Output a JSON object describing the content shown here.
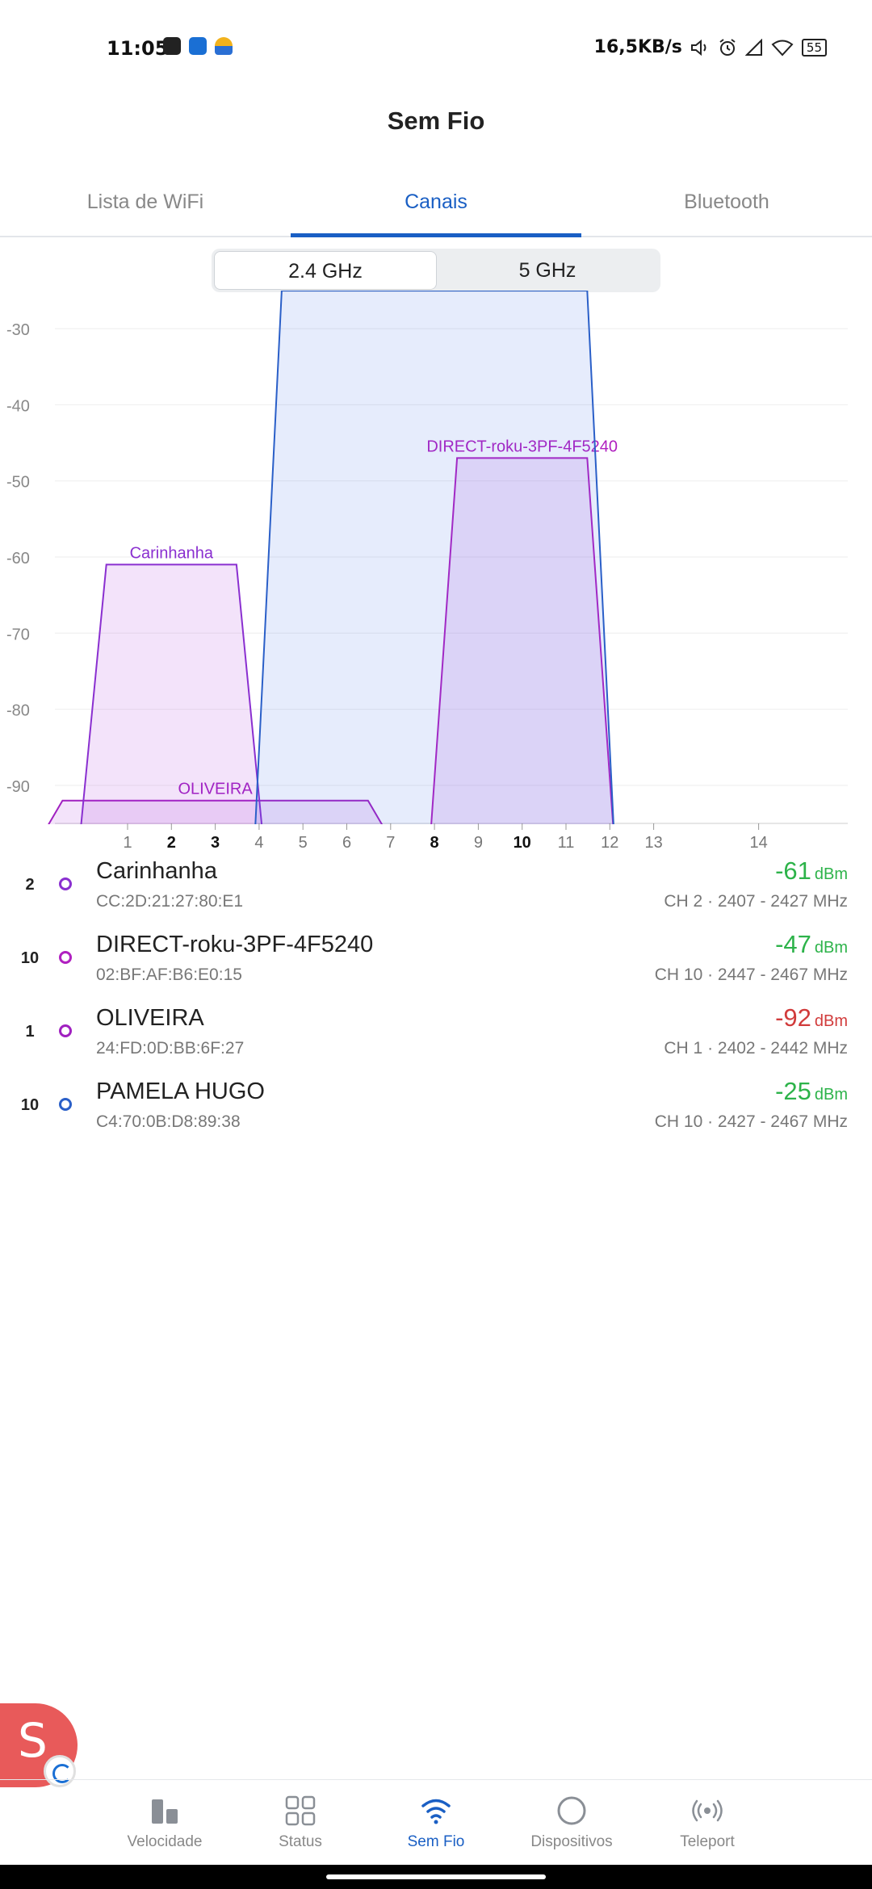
{
  "status_bar": {
    "time": "11:05",
    "speed": "16,5KB/s",
    "battery": "55",
    "icons": [
      "media-icon",
      "phone-icon",
      "weather-icon",
      "volume-icon",
      "alarm-icon",
      "signal-icon",
      "wifi-icon"
    ]
  },
  "page": {
    "title": "Sem Fio"
  },
  "tabs": [
    {
      "label": "Lista de WiFi"
    },
    {
      "label": "Canais"
    },
    {
      "label": "Bluetooth"
    }
  ],
  "band": {
    "option_24": "2.4 GHz",
    "option_5": "5 GHz",
    "selected": "2.4 GHz"
  },
  "chart_data": {
    "type": "area",
    "y_ticks": [
      -30,
      -40,
      -50,
      -60,
      -70,
      -80,
      -90
    ],
    "ylim": [
      -95,
      -25
    ],
    "x_ticks": [
      1,
      2,
      3,
      4,
      5,
      6,
      7,
      8,
      9,
      10,
      11,
      12,
      13,
      14
    ],
    "bold_ticks": [
      2,
      3,
      8,
      10
    ],
    "grid": true,
    "series": [
      {
        "name": "OLIVEIRA",
        "channel": 1,
        "start_mhz": 2402,
        "end_mhz": 2442,
        "signal": -92,
        "color": "#a020c0"
      },
      {
        "name": "Carinhanha",
        "channel": 2,
        "start_mhz": 2407,
        "end_mhz": 2427,
        "signal": -61,
        "color": "#8a2fd0"
      },
      {
        "name": "DIRECT-roku-3PF-4F5240",
        "channel": 10,
        "start_mhz": 2447,
        "end_mhz": 2467,
        "signal": -47,
        "color": "#b020c0"
      },
      {
        "name": "PAMELA HUGO",
        "channel": 10,
        "start_mhz": 2427,
        "end_mhz": 2467,
        "signal": -25,
        "color": "#2a5fc8"
      }
    ]
  },
  "networks": [
    {
      "channel": "2",
      "ssid": "Carinhanha",
      "mac": "CC:2D:21:27:80:E1",
      "signal": "-61",
      "unit": "dBm",
      "info": "CH 2 · 2407 - 2427 MHz",
      "dot_color": "#8a2fd0",
      "signal_color": "#2db34a"
    },
    {
      "channel": "10",
      "ssid": "DIRECT-roku-3PF-4F5240",
      "mac": "02:BF:AF:B6:E0:15",
      "signal": "-47",
      "unit": "dBm",
      "info": "CH 10 · 2447 - 2467 MHz",
      "dot_color": "#b020c0",
      "signal_color": "#2db34a"
    },
    {
      "channel": "1",
      "ssid": "OLIVEIRA",
      "mac": "24:FD:0D:BB:6F:27",
      "signal": "-92",
      "unit": "dBm",
      "info": "CH 1 · 2402 - 2442 MHz",
      "dot_color": "#a020c0",
      "signal_color": "#d13b3b"
    },
    {
      "channel": "10",
      "ssid": "PAMELA HUGO",
      "mac": "C4:70:0B:D8:89:38",
      "signal": "-25",
      "unit": "dBm",
      "info": "CH 10 · 2427 - 2467 MHz",
      "dot_color": "#2a5fc8",
      "signal_color": "#2db34a"
    }
  ],
  "fab": {
    "letter": "S"
  },
  "bottom_nav": [
    {
      "label": "Velocidade",
      "icon": "bar-chart-icon"
    },
    {
      "label": "Status",
      "icon": "grid-icon"
    },
    {
      "label": "Sem Fio",
      "icon": "wifi-icon",
      "active": true
    },
    {
      "label": "Dispositivos",
      "icon": "circle-icon"
    },
    {
      "label": "Teleport",
      "icon": "teleport-icon"
    }
  ]
}
